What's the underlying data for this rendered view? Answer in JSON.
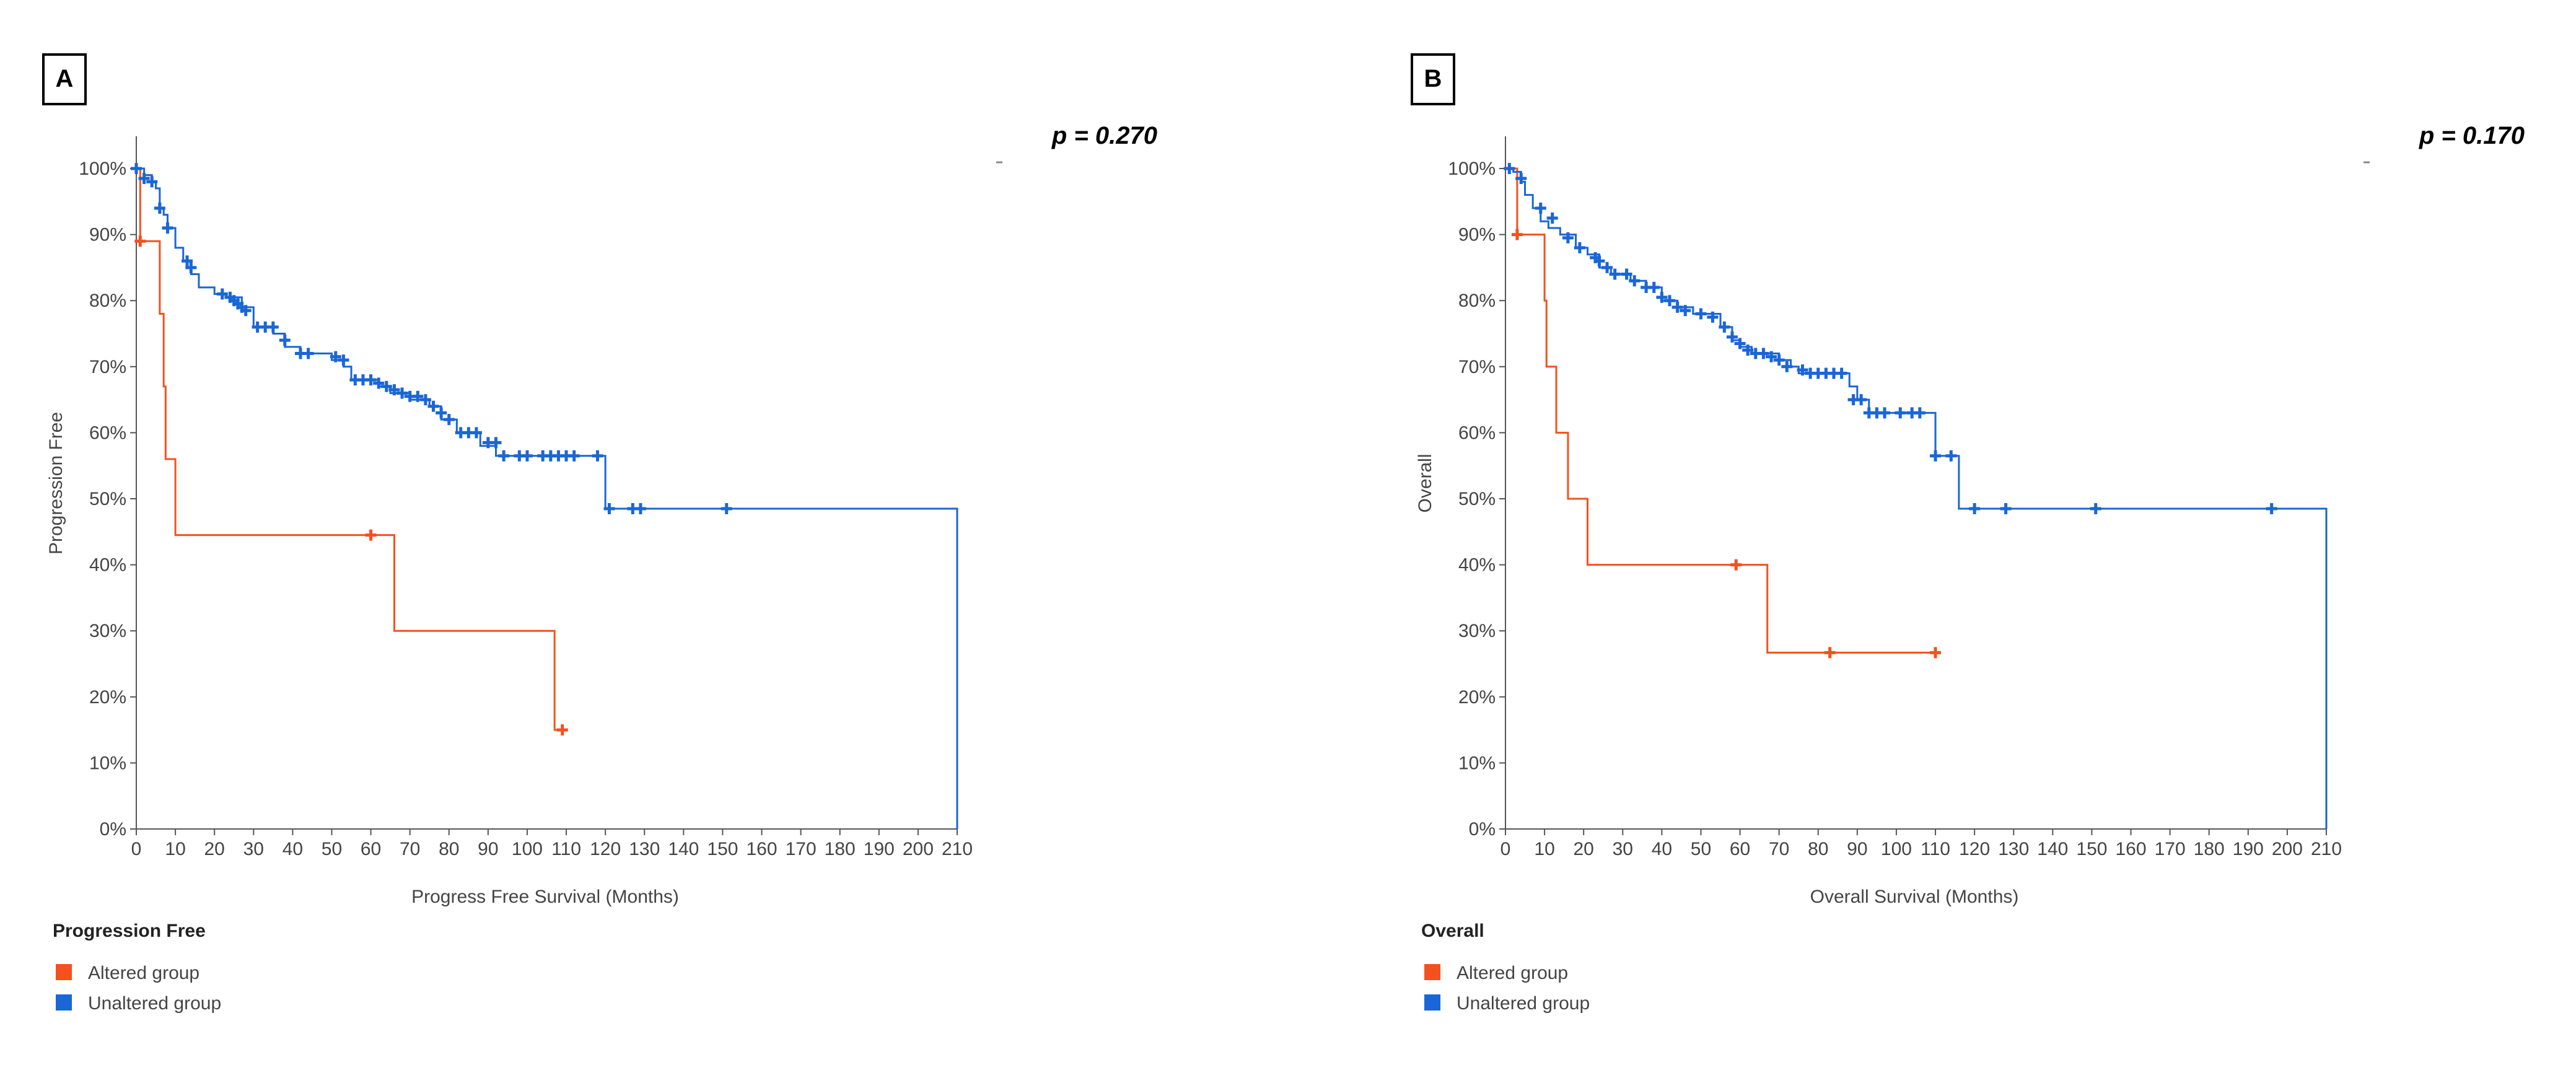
{
  "colors": {
    "altered": "#f4511e",
    "unaltered": "#1a66d6",
    "axis": "#555555",
    "text": "#444444"
  },
  "chart_data": [
    {
      "type": "line",
      "subtype": "kaplan-meier",
      "panel_label": "A",
      "p_value_text": "p = 0.270",
      "xlabel": "Progress Free Survival (Months)",
      "ylabel": "Progression Free",
      "xlim": [
        0,
        210
      ],
      "ylim": [
        0,
        100
      ],
      "x_ticks": [
        0,
        10,
        20,
        30,
        40,
        50,
        60,
        70,
        80,
        90,
        100,
        110,
        120,
        130,
        140,
        150,
        160,
        170,
        180,
        190,
        200,
        210
      ],
      "y_ticks": [
        0,
        10,
        20,
        30,
        40,
        50,
        60,
        70,
        80,
        90,
        100
      ],
      "y_tick_suffix": "%",
      "legend_title": "Progression Free",
      "legend_position": "bottom-left",
      "series": [
        {
          "name": "Altered group",
          "color_key": "altered",
          "steps": [
            [
              0,
              100
            ],
            [
              1,
              89
            ],
            [
              6,
              89
            ],
            [
              6,
              78
            ],
            [
              7,
              67
            ],
            [
              7.5,
              56
            ],
            [
              10,
              56
            ],
            [
              10,
              44.5
            ],
            [
              66,
              44.5
            ],
            [
              66,
              30
            ],
            [
              107,
              30
            ],
            [
              107,
              15
            ],
            [
              110,
              15
            ]
          ],
          "censored": [
            [
              1,
              89
            ],
            [
              60,
              44.5
            ],
            [
              109,
              15
            ]
          ]
        },
        {
          "name": "Unaltered group",
          "color_key": "unaltered",
          "steps": [
            [
              0,
              100
            ],
            [
              2,
              99
            ],
            [
              4,
              98
            ],
            [
              5,
              97
            ],
            [
              6,
              94
            ],
            [
              7,
              93
            ],
            [
              8,
              91
            ],
            [
              10,
              88
            ],
            [
              12,
              86
            ],
            [
              14,
              84
            ],
            [
              16,
              82
            ],
            [
              20,
              81
            ],
            [
              23,
              80.5
            ],
            [
              27,
              79
            ],
            [
              30,
              76
            ],
            [
              35,
              75
            ],
            [
              38,
              73
            ],
            [
              42,
              72
            ],
            [
              50,
              71
            ],
            [
              53,
              70
            ],
            [
              55,
              68
            ],
            [
              62,
              67
            ],
            [
              65,
              66
            ],
            [
              70,
              65
            ],
            [
              75,
              64
            ],
            [
              78,
              62
            ],
            [
              82,
              60
            ],
            [
              88,
              58
            ],
            [
              92,
              56.5
            ],
            [
              120,
              56.5
            ],
            [
              120,
              48.5
            ],
            [
              210,
              48.5
            ],
            [
              210,
              0
            ]
          ],
          "censored": [
            [
              0,
              100
            ],
            [
              2,
              98.5
            ],
            [
              4,
              98
            ],
            [
              6,
              94
            ],
            [
              8,
              91
            ],
            [
              13,
              86
            ],
            [
              14,
              85
            ],
            [
              22,
              81
            ],
            [
              24,
              80.5
            ],
            [
              25,
              80
            ],
            [
              26,
              79.5
            ],
            [
              27,
              79
            ],
            [
              28,
              78.5
            ],
            [
              31,
              76
            ],
            [
              33,
              76
            ],
            [
              35,
              76
            ],
            [
              38,
              74
            ],
            [
              42,
              72
            ],
            [
              44,
              72
            ],
            [
              51,
              71.5
            ],
            [
              53,
              71
            ],
            [
              56,
              68
            ],
            [
              58,
              68
            ],
            [
              60,
              68
            ],
            [
              62,
              67.5
            ],
            [
              64,
              67
            ],
            [
              66,
              66.5
            ],
            [
              68,
              66
            ],
            [
              70,
              65.5
            ],
            [
              72,
              65.5
            ],
            [
              74,
              65
            ],
            [
              76,
              64
            ],
            [
              78,
              63
            ],
            [
              80,
              62
            ],
            [
              83,
              60
            ],
            [
              85,
              60
            ],
            [
              87,
              60
            ],
            [
              90,
              58.5
            ],
            [
              92,
              58.5
            ],
            [
              94,
              56.5
            ],
            [
              98,
              56.5
            ],
            [
              100,
              56.5
            ],
            [
              104,
              56.5
            ],
            [
              106,
              56.5
            ],
            [
              108,
              56.5
            ],
            [
              110,
              56.5
            ],
            [
              112,
              56.5
            ],
            [
              118,
              56.5
            ],
            [
              121,
              48.5
            ],
            [
              127,
              48.5
            ],
            [
              129,
              48.5
            ],
            [
              151,
              48.5
            ]
          ]
        }
      ]
    },
    {
      "type": "line",
      "subtype": "kaplan-meier",
      "panel_label": "B",
      "p_value_text": "p = 0.170",
      "xlabel": "Overall Survival (Months)",
      "ylabel": "Overall",
      "xlim": [
        0,
        210
      ],
      "ylim": [
        0,
        100
      ],
      "x_ticks": [
        0,
        10,
        20,
        30,
        40,
        50,
        60,
        70,
        80,
        90,
        100,
        110,
        120,
        130,
        140,
        150,
        160,
        170,
        180,
        190,
        200,
        210
      ],
      "y_ticks": [
        0,
        10,
        20,
        30,
        40,
        50,
        60,
        70,
        80,
        90,
        100
      ],
      "y_tick_suffix": "%",
      "legend_title": "Overall",
      "legend_position": "bottom-left",
      "series": [
        {
          "name": "Altered group",
          "color_key": "altered",
          "steps": [
            [
              0,
              100
            ],
            [
              3,
              90
            ],
            [
              10,
              90
            ],
            [
              10,
              80
            ],
            [
              10.5,
              70
            ],
            [
              13,
              70
            ],
            [
              13,
              60
            ],
            [
              16,
              60
            ],
            [
              16,
              50
            ],
            [
              21,
              50
            ],
            [
              21,
              40
            ],
            [
              67,
              40
            ],
            [
              67,
              26.7
            ],
            [
              110,
              26.7
            ]
          ],
          "censored": [
            [
              3,
              90
            ],
            [
              59,
              40
            ],
            [
              83,
              26.7
            ],
            [
              110,
              26.7
            ]
          ]
        },
        {
          "name": "Unaltered group",
          "color_key": "unaltered",
          "steps": [
            [
              0,
              100
            ],
            [
              2,
              99.5
            ],
            [
              4,
              98
            ],
            [
              5,
              96
            ],
            [
              7,
              94
            ],
            [
              9,
              92
            ],
            [
              11,
              91
            ],
            [
              14,
              90
            ],
            [
              18,
              88
            ],
            [
              21,
              87
            ],
            [
              24,
              85
            ],
            [
              27,
              84
            ],
            [
              32,
              83
            ],
            [
              36,
              82
            ],
            [
              40,
              80
            ],
            [
              44,
              79
            ],
            [
              48,
              78
            ],
            [
              55,
              76
            ],
            [
              58,
              74
            ],
            [
              60,
              73
            ],
            [
              63,
              72
            ],
            [
              66,
              72
            ],
            [
              70,
              71
            ],
            [
              73,
              70
            ],
            [
              75,
              69
            ],
            [
              80,
              69
            ],
            [
              86,
              69
            ],
            [
              88,
              67
            ],
            [
              90,
              65
            ],
            [
              93,
              63
            ],
            [
              110,
              63
            ],
            [
              110,
              56.5
            ],
            [
              116,
              56.5
            ],
            [
              116,
              48.5
            ],
            [
              210,
              48.5
            ],
            [
              210,
              0
            ]
          ],
          "censored": [
            [
              1,
              100
            ],
            [
              4,
              98.5
            ],
            [
              9,
              94
            ],
            [
              12,
              92.5
            ],
            [
              16,
              89.5
            ],
            [
              19,
              88
            ],
            [
              23,
              86.5
            ],
            [
              24,
              86
            ],
            [
              26,
              85
            ],
            [
              28,
              84
            ],
            [
              31,
              84
            ],
            [
              33,
              83
            ],
            [
              36,
              82
            ],
            [
              38,
              82
            ],
            [
              40,
              80.5
            ],
            [
              42,
              80
            ],
            [
              44,
              79
            ],
            [
              46,
              78.5
            ],
            [
              50,
              78
            ],
            [
              53,
              77.5
            ],
            [
              56,
              76
            ],
            [
              58,
              74.5
            ],
            [
              60,
              73.5
            ],
            [
              62,
              72.5
            ],
            [
              64,
              72
            ],
            [
              66,
              72
            ],
            [
              68,
              71.5
            ],
            [
              70,
              71
            ],
            [
              72,
              70
            ],
            [
              76,
              69.5
            ],
            [
              78,
              69
            ],
            [
              80,
              69
            ],
            [
              82,
              69
            ],
            [
              84,
              69
            ],
            [
              86,
              69
            ],
            [
              89,
              65
            ],
            [
              91,
              65
            ],
            [
              93,
              63
            ],
            [
              95,
              63
            ],
            [
              97,
              63
            ],
            [
              101,
              63
            ],
            [
              104,
              63
            ],
            [
              106,
              63
            ],
            [
              110,
              56.5
            ],
            [
              114,
              56.5
            ],
            [
              120,
              48.5
            ],
            [
              128,
              48.5
            ],
            [
              151,
              48.5
            ],
            [
              196,
              48.5
            ]
          ]
        }
      ]
    }
  ]
}
